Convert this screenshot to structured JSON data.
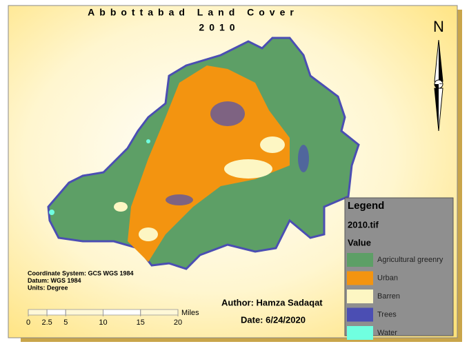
{
  "title": [
    "Abbottabad Land Cover",
    "2010"
  ],
  "north": {
    "label": "N"
  },
  "legend": {
    "title": "Legend",
    "layer": "2010.tif",
    "field": "Value",
    "items": [
      {
        "label": "Agricultural greenry",
        "color": "#5d9f66"
      },
      {
        "label": "Urban",
        "color": "#f39410"
      },
      {
        "label": "Barren",
        "color": "#fdf6c3"
      },
      {
        "label": "Trees",
        "color": "#4b4eb3"
      },
      {
        "label": "Water",
        "color": "#70ffe0"
      }
    ]
  },
  "coordinate_info": [
    "Coordinate System: GCS WGS 1984",
    "Datum: WGS 1984",
    "Units: Degree"
  ],
  "scale": {
    "unit": "Miles",
    "ticks": [
      0,
      2.5,
      5,
      10,
      15,
      20
    ]
  },
  "author": "Author: Hamza Sadaqat",
  "date": "Date: 6/24/2020"
}
